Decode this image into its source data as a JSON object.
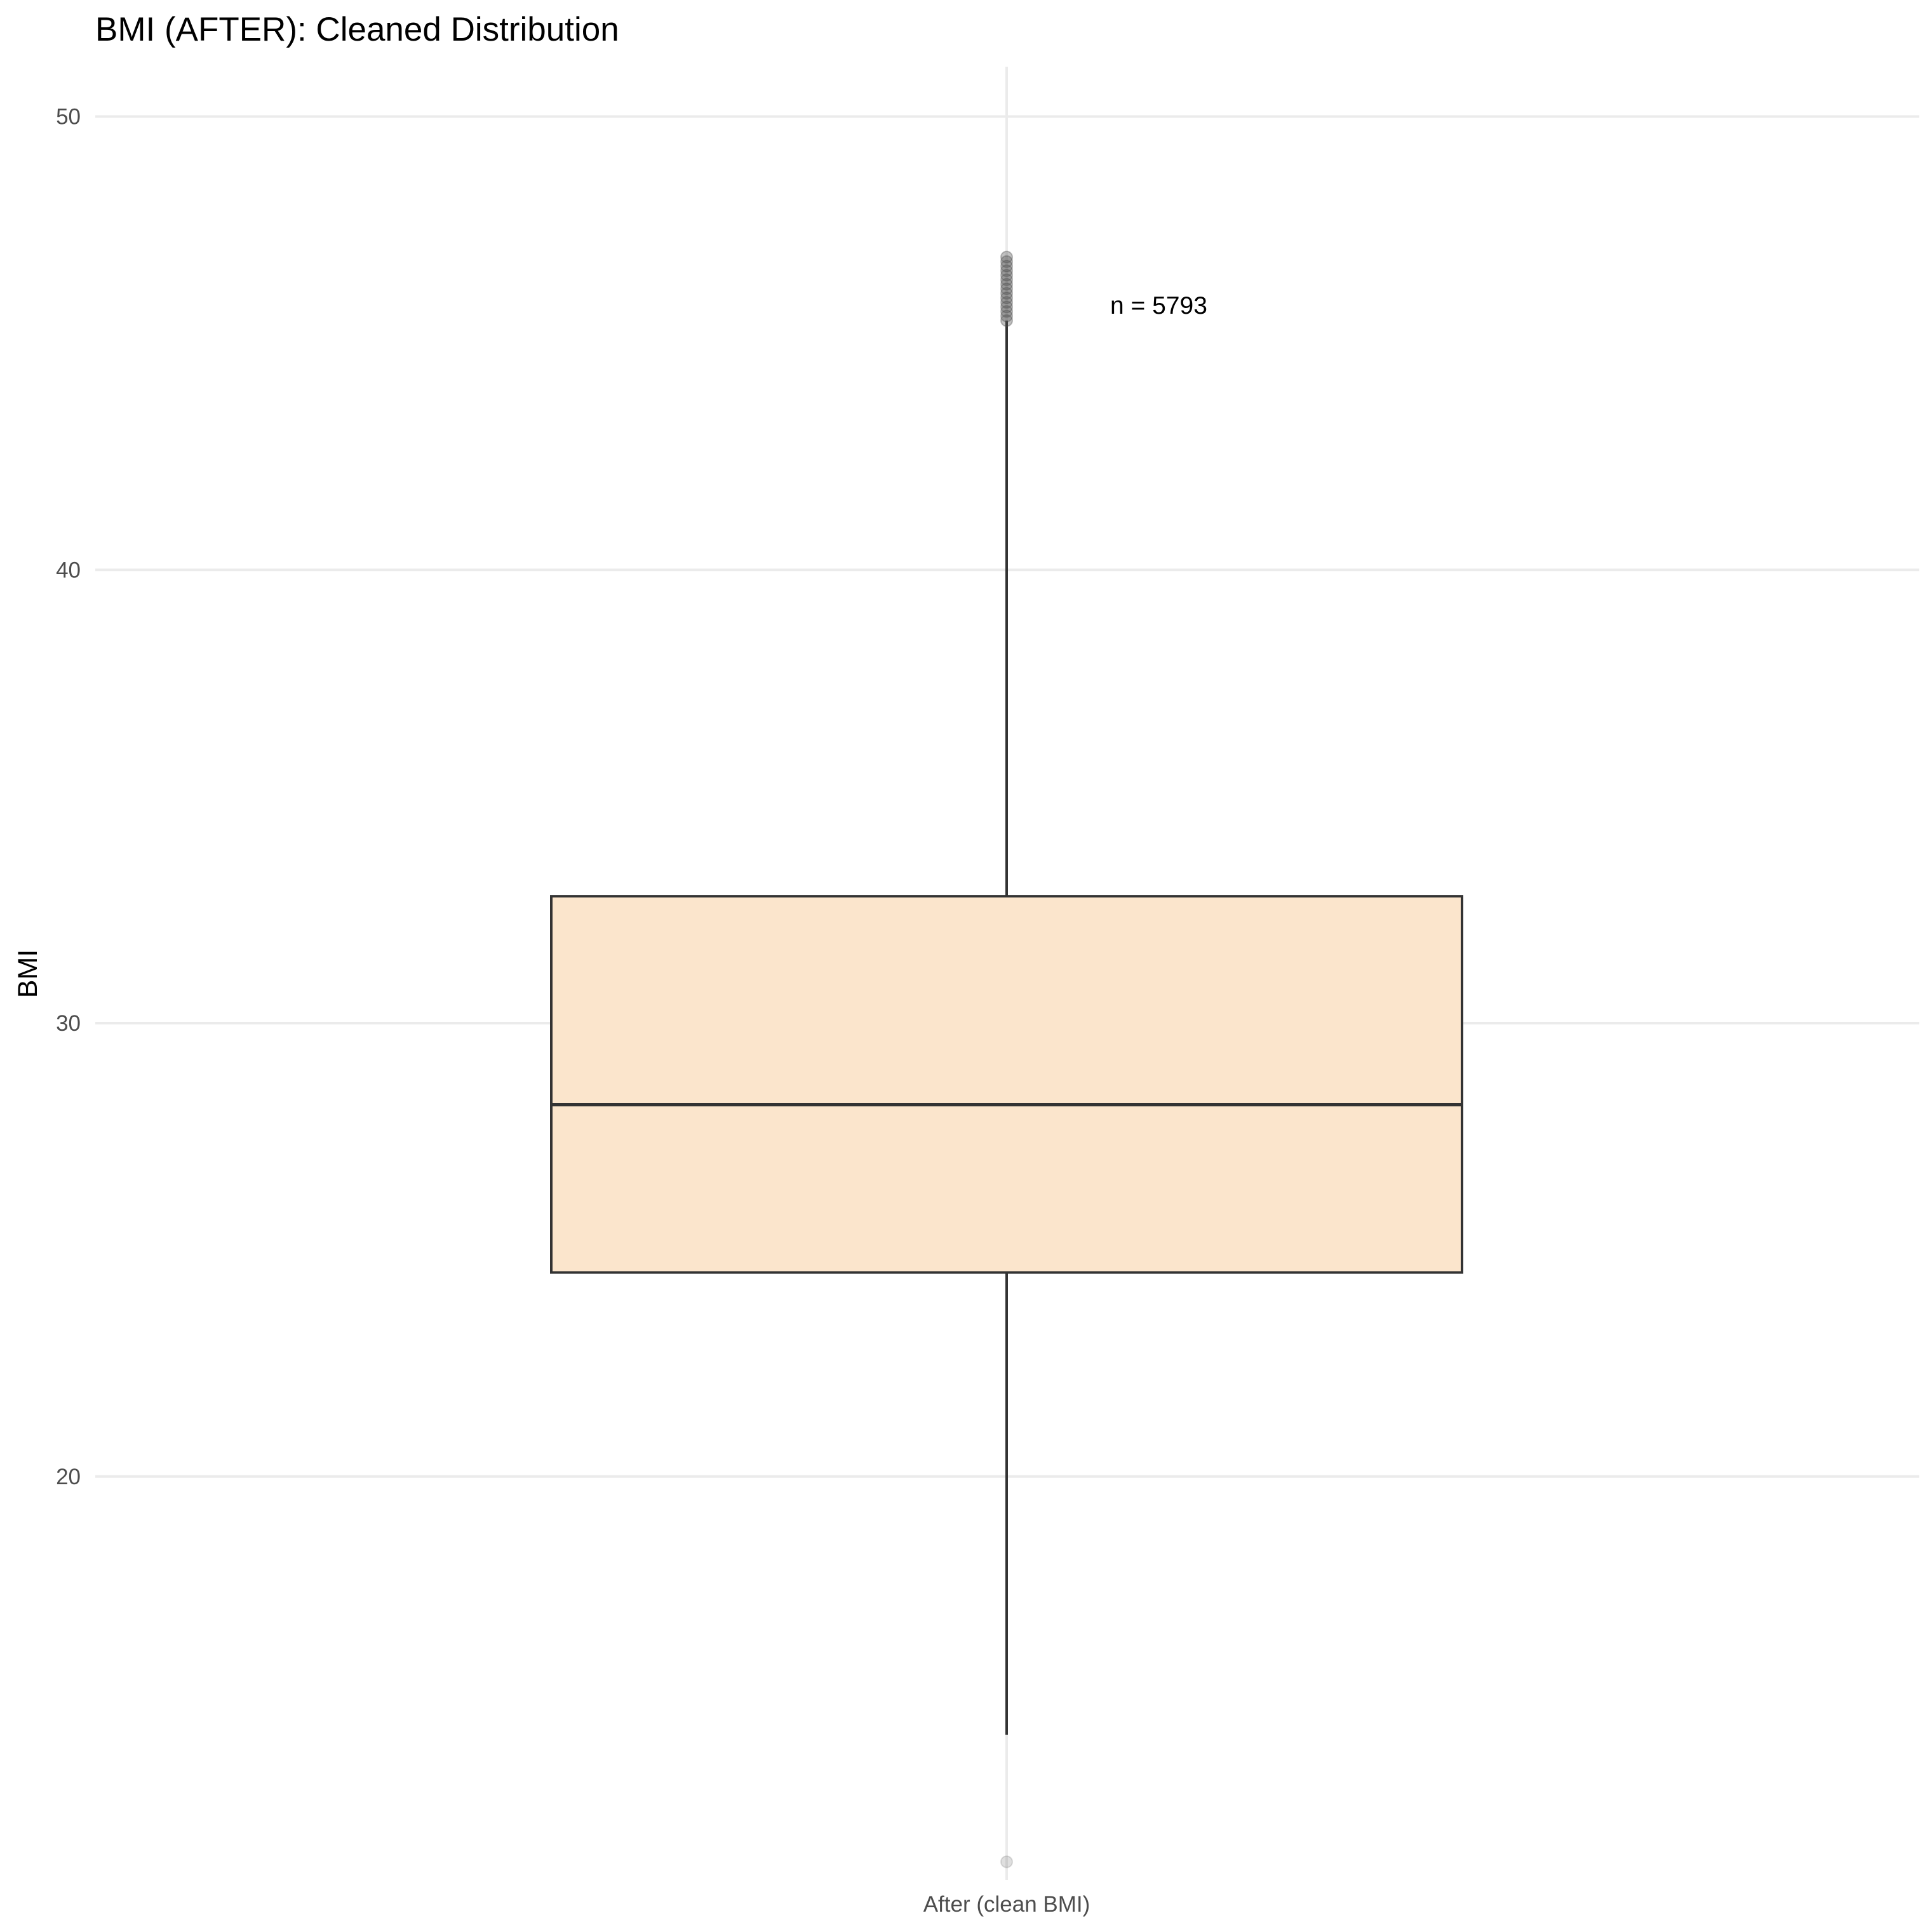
{
  "chart_data": {
    "type": "box",
    "title": "BMI (AFTER): Cleaned Distribution",
    "xlabel": "",
    "ylabel": "BMI",
    "categories": [
      "After (clean BMI)"
    ],
    "y_ticks": [
      20,
      30,
      40,
      50
    ],
    "ylim": [
      11.1,
      51.1
    ],
    "grid": true,
    "legend": "none",
    "colors": {
      "box_fill": "#FBE5CC",
      "box_line": "#333333",
      "grid": "#EBEBEB",
      "outlier": "#4D4D4D"
    },
    "boxes": [
      {
        "category": "After (clean BMI)",
        "whisker_low": 14.3,
        "q1": 24.5,
        "median": 28.2,
        "q3": 32.8,
        "whisker_high": 45.5,
        "outliers_high": [
          45.5,
          45.6,
          45.7,
          45.8,
          45.9,
          46.0,
          46.1,
          46.2,
          46.3,
          46.4,
          46.5,
          46.6,
          46.7,
          46.8,
          46.9
        ],
        "outliers_low": [
          11.5
        ]
      }
    ],
    "annotations": [
      {
        "text": "n = 5793",
        "x": "After (clean BMI)",
        "y": 45.8
      }
    ]
  }
}
